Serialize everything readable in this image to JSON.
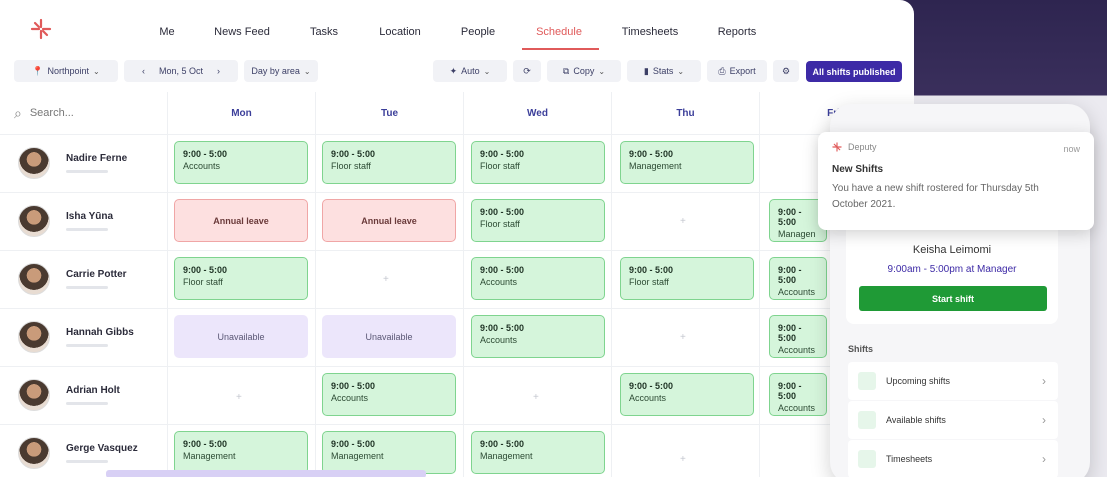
{
  "nav": {
    "items": [
      "Me",
      "News Feed",
      "Tasks",
      "Location",
      "People",
      "Schedule",
      "Timesheets",
      "Reports"
    ],
    "active": "Schedule"
  },
  "toolbar": {
    "location": "Northpoint",
    "date": "Mon, 5 Oct",
    "view": "Day by area",
    "auto": "Auto",
    "copy": "Copy",
    "stats": "Stats",
    "export": "Export",
    "publish": "All shifts published"
  },
  "search": {
    "placeholder": "Search..."
  },
  "days": [
    "Mon",
    "Tue",
    "Wed",
    "Thu",
    "Fri"
  ],
  "people": [
    {
      "name": "Nadire Ferne"
    },
    {
      "name": "Isha Yūna"
    },
    {
      "name": "Carrie Potter"
    },
    {
      "name": "Hannah Gibbs"
    },
    {
      "name": "Adrian Holt"
    },
    {
      "name": "Gerge Vasquez"
    }
  ],
  "shifts": {
    "time": "9:00 - 5:00",
    "accounts": "Accounts",
    "floor": "Floor staff",
    "management": "Management",
    "management_short": "Managen",
    "leave": "Annual leave",
    "unavailable": "Unavailable"
  },
  "notification": {
    "app": "Deputy",
    "time": "now",
    "title": "New Shifts",
    "body": "You have a new shift rostered for Thursday 5th October 2021."
  },
  "phone": {
    "name": "Keisha Leimomi",
    "shift": "9:00am - 5:00pm at Manager",
    "start_button": "Start shift",
    "shifts_label": "Shifts",
    "rows": [
      "Upcoming shifts",
      "Available shifts",
      "Timesheets"
    ]
  }
}
